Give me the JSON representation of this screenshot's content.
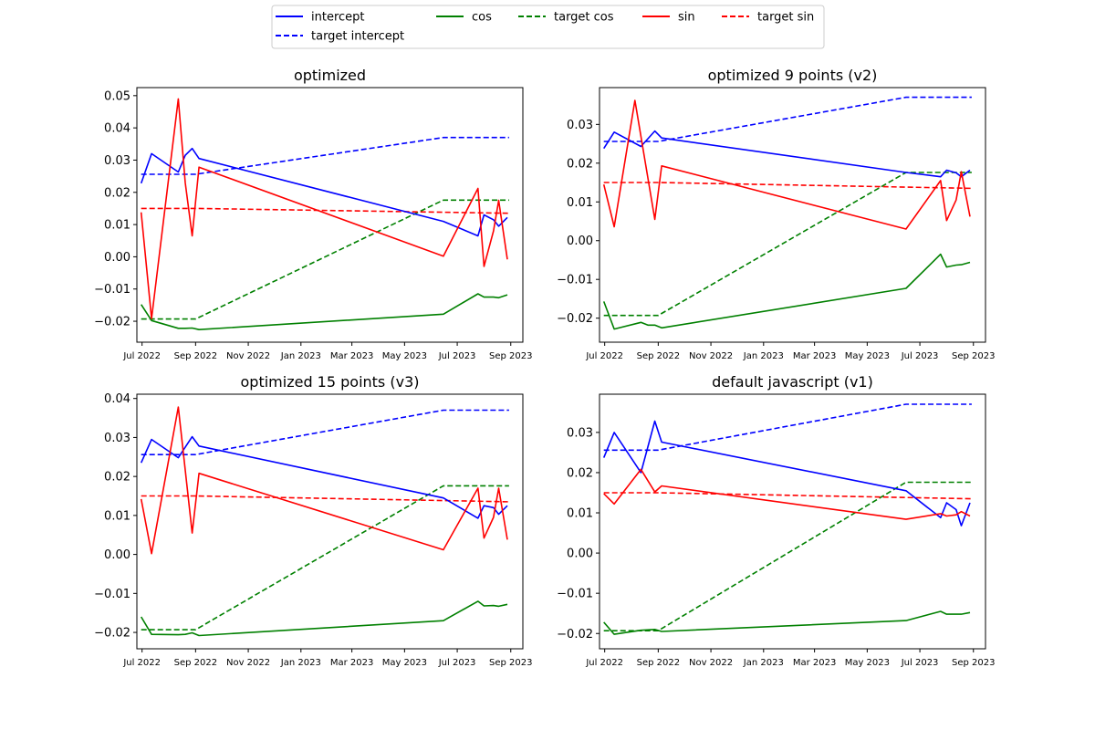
{
  "colors": {
    "intercept": "#0000ff",
    "cos": "#008000",
    "sin": "#ff0000"
  },
  "legend": {
    "placement": "top-center",
    "entries": [
      {
        "label": "intercept",
        "color": "#0000ff",
        "style": "solid"
      },
      {
        "label": "target intercept",
        "color": "#0000ff",
        "style": "dashed"
      },
      {
        "label": "cos",
        "color": "#008000",
        "style": "solid"
      },
      {
        "label": "target cos",
        "color": "#008000",
        "style": "dashed"
      },
      {
        "label": "sin",
        "color": "#ff0000",
        "style": "solid"
      },
      {
        "label": "target sin",
        "color": "#ff0000",
        "style": "dashed"
      }
    ]
  },
  "chart_data": [
    {
      "type": "line",
      "title": "optimized",
      "xlim": [
        "2022-06-25",
        "2023-09-15"
      ],
      "ylim": [
        -0.0265,
        0.0525
      ],
      "yticks": [
        -0.02,
        -0.01,
        0.0,
        0.01,
        0.02,
        0.03,
        0.04,
        0.05
      ],
      "ytick_labels": [
        "−0.02",
        "−0.01",
        "0.00",
        "0.01",
        "0.02",
        "0.03",
        "0.04",
        "0.05"
      ],
      "xticks": [
        "2022-07-01",
        "2022-09-01",
        "2022-11-01",
        "2023-01-01",
        "2023-03-01",
        "2023-05-01",
        "2023-07-01",
        "2023-09-01"
      ],
      "xtick_labels": [
        "Jul 2022",
        "Sep 2022",
        "Nov 2022",
        "Jan 2023",
        "Mar 2023",
        "May 2023",
        "Jul 2023",
        "Sep 2023"
      ],
      "series": [
        {
          "name": "target intercept",
          "color": "#0000ff",
          "dash": true,
          "x": [
            "2022-06-30",
            "2022-09-01",
            "2023-06-15",
            "2023-08-30"
          ],
          "y": [
            0.0256,
            0.0256,
            0.037,
            0.037
          ]
        },
        {
          "name": "target cos",
          "color": "#008000",
          "dash": true,
          "x": [
            "2022-06-30",
            "2022-09-01",
            "2023-06-15",
            "2023-08-30"
          ],
          "y": [
            -0.0193,
            -0.0193,
            0.0176,
            0.0176
          ]
        },
        {
          "name": "target sin",
          "color": "#ff0000",
          "dash": true,
          "x": [
            "2022-06-30",
            "2022-09-01",
            "2023-08-30"
          ],
          "y": [
            0.015,
            0.015,
            0.0135
          ]
        },
        {
          "name": "intercept",
          "color": "#0000ff",
          "dash": false,
          "x": [
            "2022-06-30",
            "2022-07-12",
            "2022-08-12",
            "2022-08-20",
            "2022-08-28",
            "2022-09-05",
            "2023-06-15",
            "2023-07-25",
            "2023-08-01",
            "2023-08-12",
            "2023-08-18",
            "2023-08-28"
          ],
          "y": [
            0.0228,
            0.032,
            0.0263,
            0.0315,
            0.0336,
            0.0305,
            0.011,
            0.0065,
            0.013,
            0.0115,
            0.0095,
            0.0122
          ]
        },
        {
          "name": "cos",
          "color": "#008000",
          "dash": false,
          "x": [
            "2022-06-30",
            "2022-07-12",
            "2022-08-12",
            "2022-08-20",
            "2022-08-28",
            "2022-09-05",
            "2023-06-15",
            "2023-07-25",
            "2023-08-01",
            "2023-08-12",
            "2023-08-18",
            "2023-08-28"
          ],
          "y": [
            -0.0148,
            -0.0198,
            -0.0222,
            -0.0222,
            -0.0221,
            -0.0226,
            -0.0178,
            -0.0115,
            -0.0125,
            -0.0125,
            -0.0127,
            -0.0118
          ]
        },
        {
          "name": "sin",
          "color": "#ff0000",
          "dash": false,
          "x": [
            "2022-06-30",
            "2022-07-12",
            "2022-08-12",
            "2022-08-20",
            "2022-08-28",
            "2022-09-05",
            "2023-06-15",
            "2023-07-25",
            "2023-08-01",
            "2023-08-12",
            "2023-08-18",
            "2023-08-28"
          ],
          "y": [
            0.0138,
            -0.0192,
            0.049,
            0.023,
            0.0065,
            0.0278,
            0.0002,
            0.0212,
            -0.003,
            0.008,
            0.0175,
            -0.0008
          ]
        }
      ]
    },
    {
      "type": "line",
      "title": "optimized 9 points (v2)",
      "xlim": [
        "2022-06-25",
        "2023-09-15"
      ],
      "ylim": [
        -0.0262,
        0.0395
      ],
      "yticks": [
        -0.02,
        -0.01,
        0.0,
        0.01,
        0.02,
        0.03
      ],
      "ytick_labels": [
        "−0.02",
        "−0.01",
        "0.00",
        "0.01",
        "0.02",
        "0.03"
      ],
      "xticks": [
        "2022-07-01",
        "2022-09-01",
        "2022-11-01",
        "2023-01-01",
        "2023-03-01",
        "2023-05-01",
        "2023-07-01",
        "2023-09-01"
      ],
      "xtick_labels": [
        "Jul 2022",
        "Sep 2022",
        "Nov 2022",
        "Jan 2023",
        "Mar 2023",
        "May 2023",
        "Jul 2023",
        "Sep 2023"
      ],
      "series": [
        {
          "name": "target intercept",
          "color": "#0000ff",
          "dash": true,
          "x": [
            "2022-06-30",
            "2022-09-01",
            "2023-06-15",
            "2023-08-30"
          ],
          "y": [
            0.0256,
            0.0256,
            0.037,
            0.037
          ]
        },
        {
          "name": "target cos",
          "color": "#008000",
          "dash": true,
          "x": [
            "2022-06-30",
            "2022-09-01",
            "2023-06-15",
            "2023-08-30"
          ],
          "y": [
            -0.0193,
            -0.0193,
            0.0176,
            0.0176
          ]
        },
        {
          "name": "target sin",
          "color": "#ff0000",
          "dash": true,
          "x": [
            "2022-06-30",
            "2022-09-01",
            "2023-08-30"
          ],
          "y": [
            0.015,
            0.015,
            0.0135
          ]
        },
        {
          "name": "intercept",
          "color": "#0000ff",
          "dash": false,
          "x": [
            "2022-06-30",
            "2022-07-12",
            "2022-08-12",
            "2022-08-28",
            "2022-09-05",
            "2023-06-15",
            "2023-07-25",
            "2023-08-01",
            "2023-08-12",
            "2023-08-18",
            "2023-08-28"
          ],
          "y": [
            0.0238,
            0.028,
            0.0243,
            0.0283,
            0.0265,
            0.0176,
            0.0165,
            0.0182,
            0.0175,
            0.0165,
            0.0182
          ]
        },
        {
          "name": "cos",
          "color": "#008000",
          "dash": false,
          "x": [
            "2022-06-30",
            "2022-07-12",
            "2022-08-12",
            "2022-08-20",
            "2022-08-28",
            "2022-09-05",
            "2023-06-15",
            "2023-07-25",
            "2023-08-01",
            "2023-08-12",
            "2023-08-18",
            "2023-08-28"
          ],
          "y": [
            -0.0157,
            -0.0228,
            -0.0211,
            -0.0218,
            -0.0218,
            -0.0225,
            -0.0123,
            -0.0035,
            -0.0068,
            -0.0063,
            -0.0062,
            -0.0056
          ]
        },
        {
          "name": "sin",
          "color": "#ff0000",
          "dash": false,
          "x": [
            "2022-06-30",
            "2022-07-12",
            "2022-08-05",
            "2022-08-28",
            "2022-09-05",
            "2023-06-15",
            "2023-07-25",
            "2023-08-01",
            "2023-08-12",
            "2023-08-18",
            "2023-08-28"
          ],
          "y": [
            0.0145,
            0.0036,
            0.0362,
            0.0055,
            0.0193,
            0.003,
            0.0155,
            0.0052,
            0.0105,
            0.0178,
            0.0062
          ]
        }
      ]
    },
    {
      "type": "line",
      "title": "optimized 15 points (v3)",
      "xlim": [
        "2022-06-25",
        "2023-09-15"
      ],
      "ylim": [
        -0.0242,
        0.0411
      ],
      "yticks": [
        -0.02,
        -0.01,
        0.0,
        0.01,
        0.02,
        0.03,
        0.04
      ],
      "ytick_labels": [
        "−0.02",
        "−0.01",
        "0.00",
        "0.01",
        "0.02",
        "0.03",
        "0.04"
      ],
      "xticks": [
        "2022-07-01",
        "2022-09-01",
        "2022-11-01",
        "2023-01-01",
        "2023-03-01",
        "2023-05-01",
        "2023-07-01",
        "2023-09-01"
      ],
      "xtick_labels": [
        "Jul 2022",
        "Sep 2022",
        "Nov 2022",
        "Jan 2023",
        "Mar 2023",
        "May 2023",
        "Jul 2023",
        "Sep 2023"
      ],
      "series": [
        {
          "name": "target intercept",
          "color": "#0000ff",
          "dash": true,
          "x": [
            "2022-06-30",
            "2022-09-01",
            "2023-06-15",
            "2023-08-30"
          ],
          "y": [
            0.0256,
            0.0256,
            0.037,
            0.037
          ]
        },
        {
          "name": "target cos",
          "color": "#008000",
          "dash": true,
          "x": [
            "2022-06-30",
            "2022-09-01",
            "2023-06-15",
            "2023-08-30"
          ],
          "y": [
            -0.0193,
            -0.0193,
            0.0176,
            0.0176
          ]
        },
        {
          "name": "target sin",
          "color": "#ff0000",
          "dash": true,
          "x": [
            "2022-06-30",
            "2022-09-01",
            "2023-08-30"
          ],
          "y": [
            0.015,
            0.015,
            0.0135
          ]
        },
        {
          "name": "intercept",
          "color": "#0000ff",
          "dash": false,
          "x": [
            "2022-06-30",
            "2022-07-12",
            "2022-08-12",
            "2022-08-28",
            "2022-09-05",
            "2023-06-15",
            "2023-07-25",
            "2023-08-01",
            "2023-08-12",
            "2023-08-18",
            "2023-08-28"
          ],
          "y": [
            0.0235,
            0.0295,
            0.0248,
            0.0302,
            0.0278,
            0.0145,
            0.0093,
            0.0125,
            0.012,
            0.0103,
            0.0125
          ]
        },
        {
          "name": "cos",
          "color": "#008000",
          "dash": false,
          "x": [
            "2022-06-30",
            "2022-07-12",
            "2022-08-12",
            "2022-08-20",
            "2022-08-28",
            "2022-09-05",
            "2023-06-15",
            "2023-07-25",
            "2023-08-01",
            "2023-08-12",
            "2023-08-18",
            "2023-08-28"
          ],
          "y": [
            -0.016,
            -0.0205,
            -0.0206,
            -0.0205,
            -0.0201,
            -0.0208,
            -0.017,
            -0.012,
            -0.0132,
            -0.0131,
            -0.0133,
            -0.0128
          ]
        },
        {
          "name": "sin",
          "color": "#ff0000",
          "dash": false,
          "x": [
            "2022-06-30",
            "2022-07-12",
            "2022-08-12",
            "2022-08-28",
            "2022-09-05",
            "2023-06-15",
            "2023-07-25",
            "2023-08-01",
            "2023-08-12",
            "2023-08-18",
            "2023-08-28"
          ],
          "y": [
            0.0142,
            0.0002,
            0.0378,
            0.0055,
            0.0208,
            0.0012,
            0.017,
            0.0042,
            0.0095,
            0.017,
            0.0038
          ]
        }
      ]
    },
    {
      "type": "line",
      "title": "default javascript (v1)",
      "xlim": [
        "2022-06-25",
        "2023-09-15"
      ],
      "ylim": [
        -0.0238,
        0.0395
      ],
      "yticks": [
        -0.02,
        -0.01,
        0.0,
        0.01,
        0.02,
        0.03
      ],
      "ytick_labels": [
        "−0.02",
        "−0.01",
        "0.00",
        "0.01",
        "0.02",
        "0.03"
      ],
      "xticks": [
        "2022-07-01",
        "2022-09-01",
        "2022-11-01",
        "2023-01-01",
        "2023-03-01",
        "2023-05-01",
        "2023-07-01",
        "2023-09-01"
      ],
      "xtick_labels": [
        "Jul 2022",
        "Sep 2022",
        "Nov 2022",
        "Jan 2023",
        "Mar 2023",
        "May 2023",
        "Jul 2023",
        "Sep 2023"
      ],
      "series": [
        {
          "name": "target intercept",
          "color": "#0000ff",
          "dash": true,
          "x": [
            "2022-06-30",
            "2022-09-01",
            "2023-06-15",
            "2023-08-30"
          ],
          "y": [
            0.0256,
            0.0256,
            0.037,
            0.037
          ]
        },
        {
          "name": "target cos",
          "color": "#008000",
          "dash": true,
          "x": [
            "2022-06-30",
            "2022-09-01",
            "2023-06-15",
            "2023-08-30"
          ],
          "y": [
            -0.0193,
            -0.0193,
            0.0176,
            0.0176
          ]
        },
        {
          "name": "target sin",
          "color": "#ff0000",
          "dash": true,
          "x": [
            "2022-06-30",
            "2022-09-01",
            "2023-08-30"
          ],
          "y": [
            0.015,
            0.015,
            0.0135
          ]
        },
        {
          "name": "intercept",
          "color": "#0000ff",
          "dash": false,
          "x": [
            "2022-06-30",
            "2022-07-12",
            "2022-08-12",
            "2022-08-28",
            "2022-09-05",
            "2023-06-15",
            "2023-07-25",
            "2023-08-01",
            "2023-08-12",
            "2023-08-18",
            "2023-08-28"
          ],
          "y": [
            0.0237,
            0.03,
            0.02,
            0.0328,
            0.0276,
            0.0155,
            0.0088,
            0.0125,
            0.0108,
            0.0068,
            0.0125
          ]
        },
        {
          "name": "cos",
          "color": "#008000",
          "dash": false,
          "x": [
            "2022-06-30",
            "2022-07-12",
            "2022-08-12",
            "2022-08-28",
            "2022-09-05",
            "2023-06-15",
            "2023-07-25",
            "2023-08-01",
            "2023-08-12",
            "2023-08-18",
            "2023-08-28"
          ],
          "y": [
            -0.0172,
            -0.0202,
            -0.0192,
            -0.019,
            -0.0195,
            -0.0168,
            -0.0145,
            -0.0152,
            -0.0152,
            -0.0152,
            -0.0148
          ]
        },
        {
          "name": "sin",
          "color": "#ff0000",
          "dash": false,
          "x": [
            "2022-06-30",
            "2022-07-12",
            "2022-08-12",
            "2022-08-28",
            "2022-09-05",
            "2023-06-15",
            "2023-07-25",
            "2023-08-01",
            "2023-08-12",
            "2023-08-18",
            "2023-08-28"
          ],
          "y": [
            0.0148,
            0.0122,
            0.0208,
            0.0152,
            0.0167,
            0.0084,
            0.0098,
            0.0092,
            0.0095,
            0.0103,
            0.0092
          ]
        }
      ]
    }
  ]
}
